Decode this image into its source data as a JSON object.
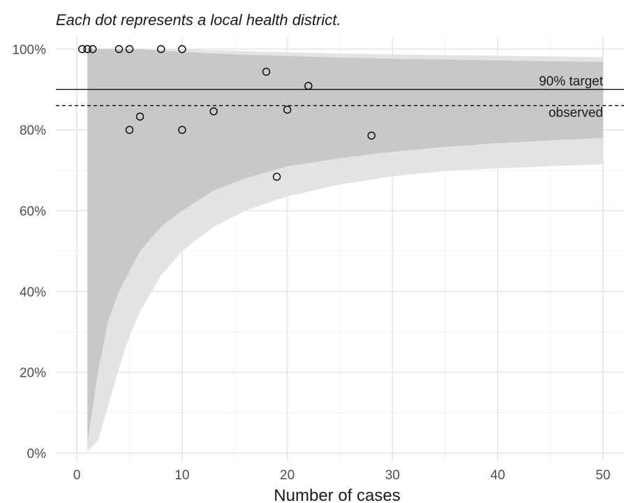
{
  "chart_data": {
    "type": "scatter",
    "title": "",
    "subtitle": "Each dot represents a local health district.",
    "xlabel": "Number of cases",
    "ylabel": "",
    "xlim": [
      -2,
      52
    ],
    "ylim": [
      -2,
      103
    ],
    "x_ticks": [
      0,
      10,
      20,
      30,
      40,
      50
    ],
    "x_tick_labels": [
      "0",
      "10",
      "20",
      "30",
      "40",
      "50"
    ],
    "y_ticks": [
      0,
      20,
      40,
      60,
      80,
      100
    ],
    "y_tick_labels": [
      "0%",
      "20%",
      "40%",
      "60%",
      "80%",
      "100%"
    ],
    "grid": true,
    "reference_lines": [
      {
        "label": "90% target",
        "y": 90,
        "style": "solid"
      },
      {
        "label": "observed",
        "y": 86,
        "style": "dashed"
      }
    ],
    "funnel_bands": [
      {
        "name": "outer",
        "x": [
          1,
          2,
          3,
          4,
          5,
          6,
          8,
          10,
          13,
          16,
          20,
          25,
          30,
          35,
          40,
          45,
          50
        ],
        "lower": [
          0.5,
          3,
          12,
          21,
          29,
          35,
          44,
          50,
          56,
          60,
          63.5,
          66.5,
          68.5,
          69.8,
          70.5,
          71,
          71.5
        ],
        "upper": [
          100,
          100,
          100,
          100,
          100,
          100,
          100,
          100,
          99.7,
          99.5,
          99.2,
          98.9,
          98.7,
          98.5,
          98.4,
          98.2,
          98
        ]
      },
      {
        "name": "inner",
        "x": [
          1,
          2,
          3,
          4,
          5,
          6,
          8,
          10,
          13,
          16,
          20,
          25,
          30,
          35,
          40,
          45,
          50
        ],
        "lower": [
          2.5,
          20,
          33,
          40,
          45,
          50,
          56,
          60,
          65,
          68,
          71,
          73,
          74.6,
          75.8,
          76.7,
          77.4,
          78
        ],
        "upper": [
          100,
          100,
          100,
          100,
          100,
          100,
          99.6,
          99.3,
          98.9,
          98.6,
          98.3,
          97.9,
          97.6,
          97.4,
          97.2,
          97,
          96.8
        ]
      }
    ],
    "points": [
      {
        "x": 0.5,
        "y": 100
      },
      {
        "x": 1,
        "y": 100
      },
      {
        "x": 1.5,
        "y": 100
      },
      {
        "x": 4,
        "y": 100
      },
      {
        "x": 5,
        "y": 100
      },
      {
        "x": 8,
        "y": 100
      },
      {
        "x": 10,
        "y": 100
      },
      {
        "x": 5,
        "y": 80
      },
      {
        "x": 6,
        "y": 83.3
      },
      {
        "x": 10,
        "y": 80
      },
      {
        "x": 13,
        "y": 84.6
      },
      {
        "x": 18,
        "y": 94.4
      },
      {
        "x": 19,
        "y": 68.4
      },
      {
        "x": 20,
        "y": 85
      },
      {
        "x": 22,
        "y": 90.9
      },
      {
        "x": 28,
        "y": 78.6
      }
    ],
    "colors": {
      "outer_band": "#e3e3e3",
      "inner_band": "#c8c8c8",
      "grid_major": "#e5e5e5",
      "grid_minor": "#f1f1f1",
      "reference": "#000000",
      "point_stroke": "#000000"
    }
  }
}
